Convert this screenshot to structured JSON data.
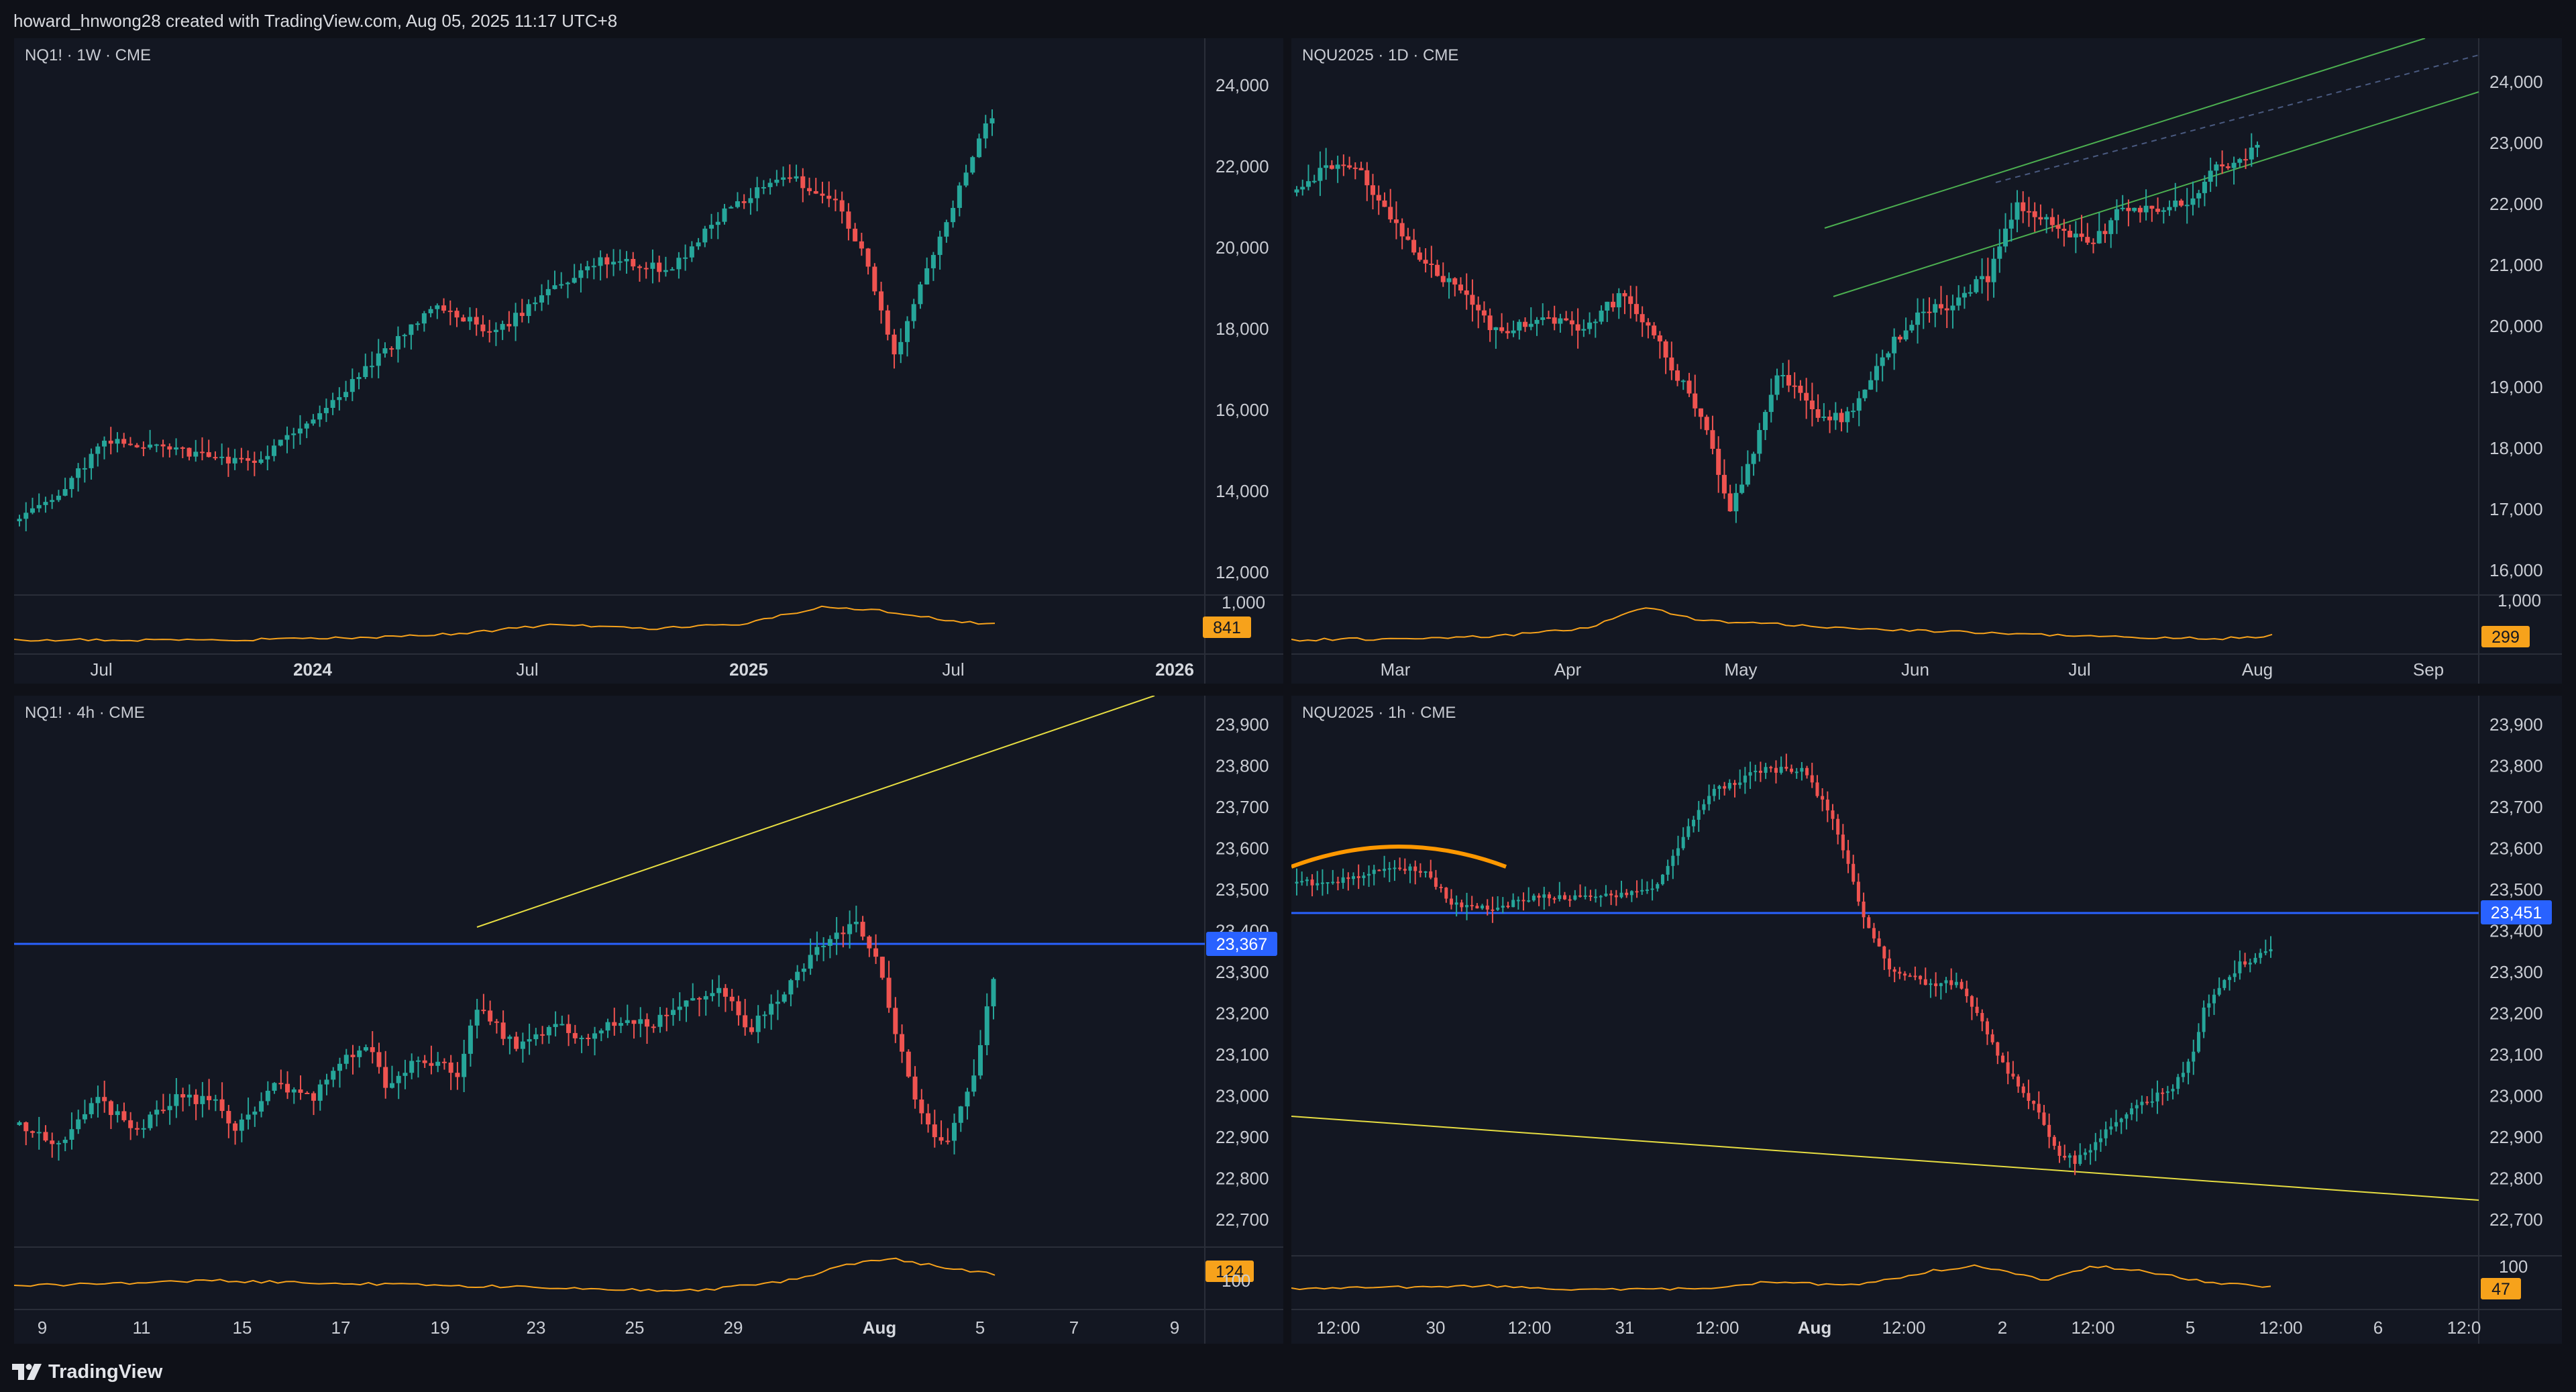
{
  "header": {
    "attribution": "howard_hnwong28 created with TradingView.com, Aug 05, 2025 11:17 UTC+8"
  },
  "footer": {
    "brand": "TradingView",
    "logo_icon": "tradingview-logo-icon"
  },
  "colors": {
    "background": "#131722",
    "frame": "#0f1118",
    "up_candle": "#26a69a",
    "down_candle": "#ef5350",
    "volume_line": "#f7a21b",
    "horizontal_level": "#2962ff",
    "trend_line": "#e6dd42",
    "channel": "#4caf50",
    "arc": "#ff9800"
  },
  "panels": [
    {
      "id": "p1",
      "symbol": "NQ1! · 1W · CME",
      "y_ticks": [
        "24,000",
        "22,000",
        "20,000",
        "18,000",
        "16,000",
        "14,000",
        "12,000"
      ],
      "x_ticks": [
        "Jul",
        "2024",
        "Jul",
        "2025",
        "Jul",
        "2026"
      ],
      "x_ticks_bold": [
        "2024",
        "2025",
        "2026"
      ],
      "volume_badge": "841",
      "volume_scale_label": "1,000"
    },
    {
      "id": "p2",
      "symbol": "NQU2025 · 1D · CME",
      "y_ticks": [
        "24,000",
        "23,000",
        "22,000",
        "21,000",
        "20,000",
        "19,000",
        "18,000",
        "17,000",
        "16,000"
      ],
      "x_ticks": [
        "Mar",
        "Apr",
        "May",
        "Jun",
        "Jul",
        "Aug",
        "Sep"
      ],
      "x_ticks_bold": [],
      "volume_badge": "299",
      "volume_scale_label": "1,000"
    },
    {
      "id": "p3",
      "symbol": "NQ1! · 4h · CME",
      "y_ticks": [
        "23,900",
        "23,800",
        "23,700",
        "23,600",
        "23,500",
        "23,400",
        "23,300",
        "23,200",
        "23,100",
        "23,000",
        "22,900",
        "22,800",
        "22,700"
      ],
      "x_ticks": [
        "9",
        "11",
        "15",
        "17",
        "19",
        "23",
        "25",
        "29",
        "Aug",
        "5",
        "7",
        "9"
      ],
      "x_ticks_bold": [
        "Aug"
      ],
      "price_badge": "23,367",
      "volume_badge": "124",
      "volume_scale_label": "100"
    },
    {
      "id": "p4",
      "symbol": "NQU2025 · 1h · CME",
      "y_ticks": [
        "23,900",
        "23,800",
        "23,700",
        "23,600",
        "23,500",
        "23,400",
        "23,300",
        "23,200",
        "23,100",
        "23,000",
        "22,900",
        "22,800",
        "22,700"
      ],
      "x_ticks": [
        "12:00",
        "30",
        "12:00",
        "31",
        "12:00",
        "Aug",
        "12:00",
        "2",
        "12:00",
        "5",
        "12:00",
        "6",
        "12:0"
      ],
      "x_ticks_bold": [
        "Aug"
      ],
      "price_badge": "23,451",
      "volume_badge": "47",
      "volume_scale_label": "100"
    }
  ]
}
